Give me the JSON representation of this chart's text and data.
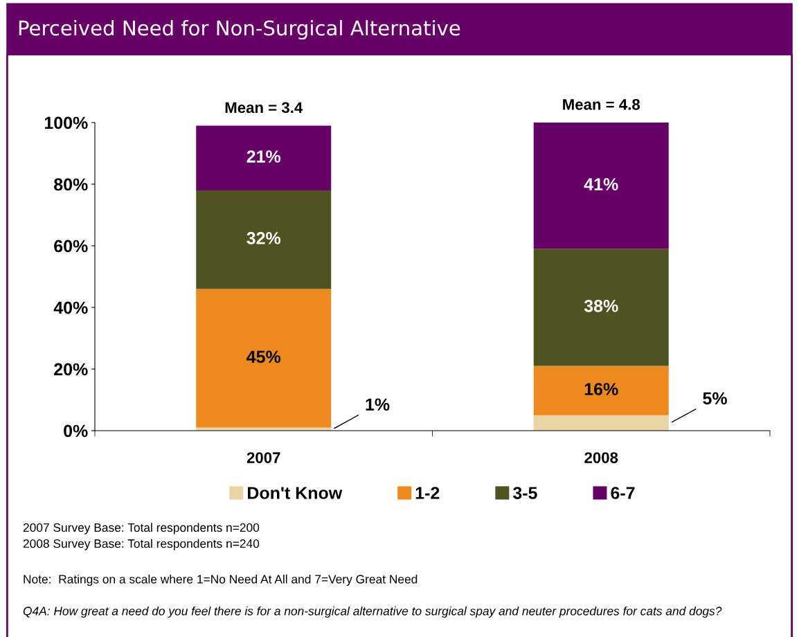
{
  "chart_data": {
    "type": "bar",
    "title": "Perceived Need for Non-Surgical Alternative",
    "categories": [
      "2007",
      "2008"
    ],
    "stacked": true,
    "series": [
      {
        "name": "Don't Know",
        "color": "#e8d4a4",
        "values": [
          1,
          5
        ],
        "value_labels": [
          "1%",
          "5%"
        ]
      },
      {
        "name": "1-2",
        "color": "#ec8a20",
        "values": [
          45,
          16
        ],
        "value_labels": [
          "45%",
          "16%"
        ]
      },
      {
        "name": "3-5",
        "color": "#4f5322",
        "values": [
          32,
          38
        ],
        "value_labels": [
          "32%",
          "38%"
        ]
      },
      {
        "name": "6-7",
        "color": "#660066",
        "values": [
          21,
          41
        ],
        "value_labels": [
          "21%",
          "41%"
        ]
      }
    ],
    "ylim": [
      0,
      100
    ],
    "yticks": [
      {
        "value": 0,
        "label": "0%"
      },
      {
        "value": 20,
        "label": "20%"
      },
      {
        "value": 40,
        "label": "40%"
      },
      {
        "value": 60,
        "label": "60%"
      },
      {
        "value": 80,
        "label": "80%"
      },
      {
        "value": 100,
        "label": "100%"
      }
    ],
    "grid": false,
    "legend": "bottom",
    "annotations": [
      {
        "text": "Mean = 3.4",
        "x": "2007",
        "y": 99
      },
      {
        "text": "Mean = 4.8",
        "x": "2008",
        "y": 100
      },
      "2007 Survey Base: Total respondents n=200\n2008 Survey Base: Total respondents n=240",
      "Note:  Ratings on a scale where 1=No Need At All and 7=Very Great Need",
      "Q4A: How great a need do you feel there is for a non-surgical alternative to surgical spay and neuter procedures for cats and dogs?"
    ]
  }
}
